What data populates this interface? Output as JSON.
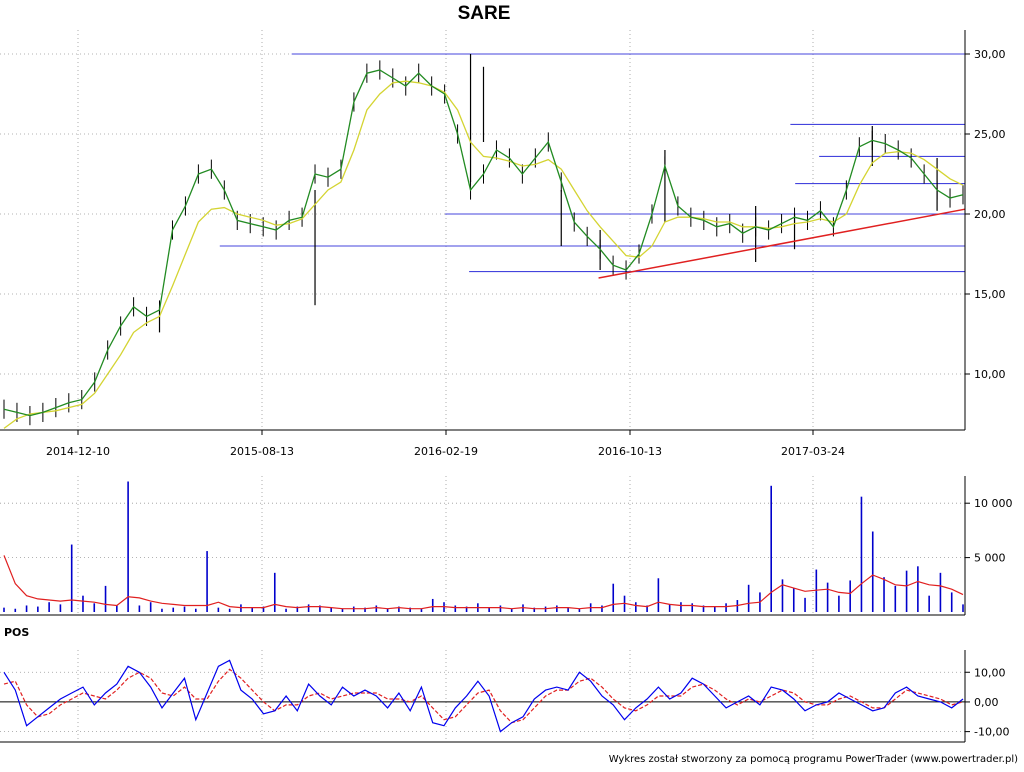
{
  "chart_data": [
    {
      "type": "line",
      "title": "SARE",
      "x_tick_labels": [
        "2014-12-10",
        "2015-08-13",
        "2016-02-19",
        "2016-10-13",
        "2017-03-24"
      ],
      "y_tick_labels": [
        "30,00",
        "25,00",
        "20,00",
        "15,00",
        "10,00"
      ],
      "ylim": [
        6.5,
        31.5
      ],
      "grid": true,
      "series": [
        {
          "color": "#228b22",
          "values": [
            7.8,
            7.6,
            7.4,
            7.6,
            7.9,
            8.2,
            8.4,
            9.5,
            11.5,
            13.0,
            14.2,
            13.6,
            14.0,
            19.0,
            20.5,
            22.5,
            22.8,
            21.5,
            19.6,
            19.4,
            19.2,
            19.0,
            19.6,
            19.8,
            22.5,
            22.3,
            22.8,
            27.0,
            28.8,
            29.0,
            28.5,
            28.0,
            28.8,
            28.0,
            27.5,
            25.0,
            21.5,
            22.5,
            24.0,
            23.5,
            22.5,
            23.5,
            24.5,
            22.0,
            19.5,
            18.6,
            17.8,
            16.8,
            16.5,
            17.5,
            20.0,
            23.0,
            20.5,
            19.8,
            19.6,
            19.2,
            19.4,
            18.8,
            19.2,
            19.0,
            19.4,
            19.8,
            19.6,
            20.2,
            19.2,
            21.5,
            24.2,
            24.6,
            24.4,
            24.0,
            23.5,
            22.5,
            21.5,
            21.0,
            21.2
          ]
        },
        {
          "color": "#d4d432",
          "values": [
            6.6,
            7.2,
            7.5,
            7.6,
            7.7,
            7.9,
            8.1,
            8.8,
            10.0,
            11.2,
            12.6,
            13.2,
            13.6,
            15.5,
            17.5,
            19.5,
            20.3,
            20.4,
            20.0,
            19.8,
            19.6,
            19.3,
            19.4,
            19.7,
            20.6,
            21.5,
            22.0,
            24.0,
            26.5,
            27.5,
            28.2,
            28.3,
            28.2,
            28.0,
            27.6,
            26.5,
            24.5,
            23.6,
            23.5,
            23.3,
            23.0,
            23.1,
            23.4,
            22.8,
            21.5,
            20.2,
            19.2,
            18.3,
            17.4,
            17.3,
            18.0,
            19.5,
            19.8,
            19.8,
            19.7,
            19.5,
            19.5,
            19.2,
            19.2,
            19.1,
            19.2,
            19.4,
            19.5,
            19.7,
            19.5,
            20.0,
            21.8,
            23.2,
            23.8,
            23.9,
            23.8,
            23.4,
            22.8,
            22.2,
            21.8
          ]
        }
      ],
      "extreme_bars": [
        [
          12,
          12.6,
          14.2
        ],
        [
          24,
          14.3,
          21.5
        ],
        [
          36,
          22.0,
          30.0
        ],
        [
          37,
          24.5,
          29.2
        ],
        [
          43,
          18.0,
          21.5
        ],
        [
          46,
          16.5,
          19.0
        ],
        [
          51,
          19.5,
          24.0
        ],
        [
          58,
          17.0,
          20.5
        ],
        [
          61,
          17.8,
          20.0
        ],
        [
          67,
          23.0,
          25.5
        ],
        [
          72,
          20.2,
          23.5
        ]
      ],
      "horizontal_levels": [
        {
          "y": 30.0,
          "x_range": [
            0.3,
            1.0
          ]
        },
        {
          "y": 25.6,
          "x_range": [
            0.82,
            1.0
          ]
        },
        {
          "y": 23.6,
          "x_range": [
            0.85,
            1.0
          ]
        },
        {
          "y": 21.9,
          "x_range": [
            0.825,
            1.0
          ]
        },
        {
          "y": 20.0,
          "x_range": [
            0.46,
            1.0
          ]
        },
        {
          "y": 18.0,
          "x_range": [
            0.225,
            1.0
          ]
        },
        {
          "y": 16.4,
          "x_range": [
            0.485,
            1.0
          ]
        }
      ],
      "trend_line": {
        "color": "#e02020",
        "from": [
          0.62,
          16.0
        ],
        "to": [
          1.0,
          20.3
        ]
      },
      "level_color": "#4444dd"
    },
    {
      "type": "bar",
      "y_tick_labels": [
        "10 000",
        "5 000"
      ],
      "ylim": [
        0,
        12500
      ],
      "bar_color": "#0000cc",
      "values": [
        400,
        300,
        600,
        500,
        900,
        700,
        6200,
        1500,
        800,
        2400,
        600,
        12000,
        600,
        900,
        300,
        400,
        500,
        300,
        5600,
        400,
        300,
        700,
        400,
        500,
        3600,
        300,
        500,
        700,
        600,
        400,
        300,
        500,
        400,
        600,
        300,
        500,
        400,
        300,
        1200,
        900,
        600,
        500,
        800,
        400,
        600,
        300,
        700,
        400,
        500,
        600,
        400,
        300,
        800,
        600,
        2600,
        1500,
        900,
        600,
        3100,
        700,
        900,
        800,
        600,
        500,
        800,
        1100,
        2500,
        1800,
        11600,
        3000,
        2200,
        1300,
        3900,
        2700,
        1500,
        2900,
        10600,
        7400,
        3200,
        2400,
        3800,
        4200,
        1500,
        3600,
        1800,
        700
      ],
      "average_line": {
        "color": "#e02020",
        "values": [
          5200,
          2600,
          1500,
          1200,
          1100,
          1000,
          1100,
          1000,
          900,
          700,
          600,
          1400,
          1300,
          1000,
          800,
          700,
          600,
          600,
          600,
          900,
          500,
          400,
          400,
          400,
          700,
          500,
          400,
          500,
          500,
          400,
          300,
          300,
          300,
          400,
          300,
          400,
          300,
          300,
          500,
          500,
          400,
          400,
          400,
          400,
          400,
          300,
          400,
          300,
          300,
          400,
          400,
          300,
          400,
          400,
          700,
          800,
          600,
          500,
          900,
          700,
          600,
          600,
          500,
          500,
          500,
          600,
          800,
          900,
          1800,
          2500,
          2200,
          1900,
          2000,
          2100,
          1800,
          1700,
          2600,
          3400,
          3000,
          2500,
          2400,
          2800,
          2500,
          2400,
          2100,
          1600
        ]
      }
    },
    {
      "type": "line",
      "title": "POS",
      "y_tick_labels": [
        "10,00",
        "0,00",
        "-10,00"
      ],
      "ylim": [
        -13.5,
        17.5
      ],
      "zero_line": true,
      "series": [
        {
          "color": "#0000ee",
          "values": [
            10,
            4,
            -8,
            -5,
            -2,
            1,
            3,
            5,
            -1,
            3,
            6,
            12,
            10,
            5,
            -2,
            3,
            8,
            -6,
            3,
            12,
            14,
            4,
            1,
            -4,
            -3,
            2,
            -3,
            6,
            2,
            -1,
            5,
            2,
            4,
            2,
            -2,
            3,
            -3,
            5,
            -7,
            -8,
            -2,
            2,
            7,
            2,
            -10,
            -7,
            -5,
            1,
            4,
            5,
            4,
            10,
            7,
            2,
            -1,
            -6,
            -2,
            1,
            5,
            1,
            3,
            8,
            6,
            2,
            -2,
            0,
            2,
            -1,
            5,
            4,
            1,
            -3,
            -1,
            0,
            3,
            1,
            -1,
            -3,
            -2,
            3,
            5,
            2,
            1,
            0,
            -2,
            1
          ]
        },
        {
          "color": "#e02020",
          "values": [
            6,
            7,
            -1,
            -5,
            -4,
            -1,
            1,
            3,
            2,
            1,
            4,
            8,
            10,
            8,
            3,
            2,
            5,
            1,
            1,
            7,
            11,
            8,
            4,
            0,
            -3,
            -1,
            -1,
            2,
            3,
            1,
            2,
            3,
            3,
            3,
            1,
            1,
            0,
            2,
            -2,
            -6,
            -5,
            -1,
            3,
            4,
            -3,
            -7,
            -6,
            -2,
            2,
            4,
            4,
            7,
            8,
            5,
            1,
            -2,
            -3,
            -1,
            2,
            2,
            2,
            5,
            6,
            4,
            1,
            -1,
            1,
            0,
            2,
            4,
            3,
            0,
            -1,
            -1,
            1,
            2,
            0,
            -2,
            -2,
            1,
            4,
            3,
            2,
            1,
            -1,
            0
          ]
        }
      ]
    }
  ],
  "footer": "Wykres został stworzony za pomocą programu PowerTrader (www.powertrader.pl)"
}
